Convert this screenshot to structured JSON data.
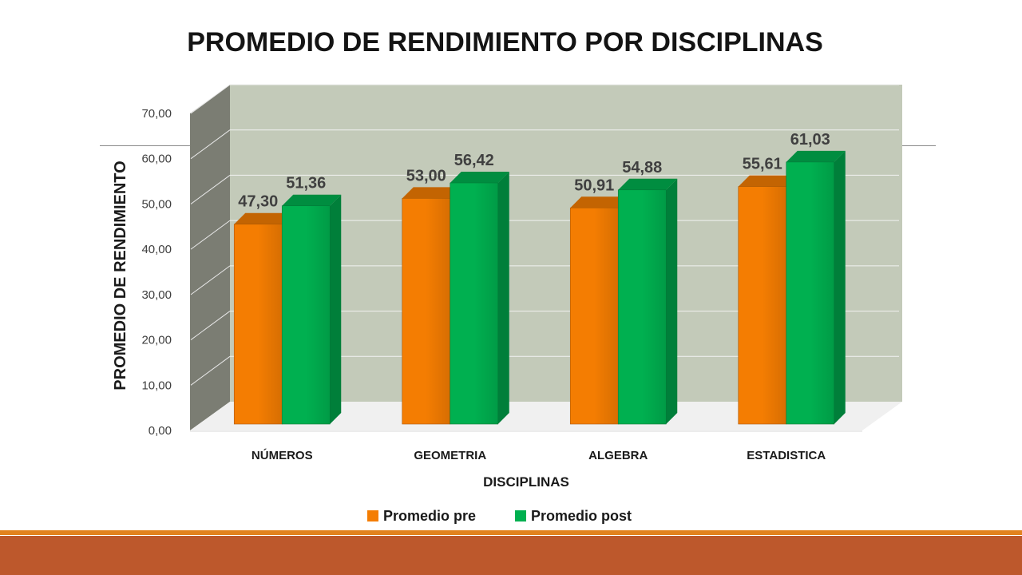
{
  "chart_data": {
    "type": "bar",
    "title": "PROMEDIO DE RENDIMIENTO POR DISCIPLINAS",
    "xlabel": "DISCIPLINAS",
    "ylabel": "PROMEDIO DE RENDIMIENTO",
    "categories": [
      "NÚMEROS",
      "GEOMETRIA",
      "ALGEBRA",
      "ESTADISTICA"
    ],
    "series": [
      {
        "name": "Promedio pre",
        "values": [
          47.3,
          53.0,
          50.91,
          55.61
        ],
        "labels": [
          "47,30",
          "53,00",
          "50,91",
          "55,61"
        ],
        "color": "#f47d02"
      },
      {
        "name": "Promedio post",
        "values": [
          51.36,
          56.42,
          54.88,
          61.03
        ],
        "labels": [
          "51,36",
          "56,42",
          "54,88",
          "61,03"
        ],
        "color": "#00b050"
      }
    ],
    "yticks": [
      "0,00",
      "10,00",
      "20,00",
      "30,00",
      "40,00",
      "50,00",
      "60,00",
      "70,00"
    ],
    "ylim": [
      0,
      70
    ],
    "grid": true,
    "legend": "bottom",
    "style": "3d-clustered-column"
  }
}
